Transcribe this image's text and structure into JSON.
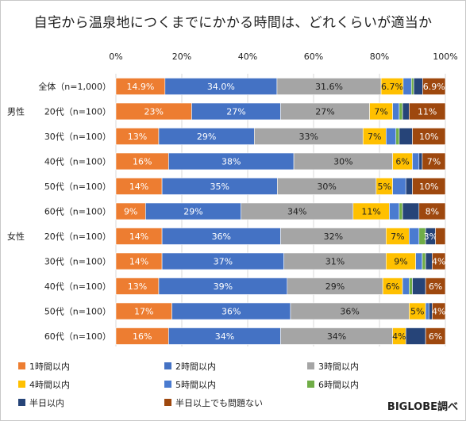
{
  "title": "自宅から温泉地につくまでにかかる時間は、どれくらいが適当か",
  "credit": "BIGLOBE調べ",
  "chart_data": {
    "type": "bar",
    "orientation": "horizontal",
    "stacked": "percent",
    "xlim": [
      0,
      100
    ],
    "xticks": [
      "0%",
      "20%",
      "40%",
      "60%",
      "80%",
      "100%"
    ],
    "grid": true,
    "legend_position": "bottom",
    "group_labels": [
      {
        "label": "男性",
        "row": 1
      },
      {
        "label": "女性",
        "row": 6
      }
    ],
    "categories": [
      "全体（n=1,000）",
      "20代（n=100）",
      "30代（n=100）",
      "40代（n=100）",
      "50代（n=100）",
      "60代（n=100）",
      "20代（n=100）",
      "30代（n=100）",
      "40代（n=100）",
      "50代（n=100）",
      "60代（n=100）"
    ],
    "series": [
      {
        "name": "1時間以内",
        "color": "#ed7d31",
        "values": [
          14.9,
          23,
          13,
          16,
          14,
          9,
          14,
          14,
          13,
          17,
          16
        ],
        "labels": [
          "14.9%",
          "23%",
          "13%",
          "16%",
          "14%",
          "9%",
          "14%",
          "14%",
          "13%",
          "17%",
          "16%"
        ]
      },
      {
        "name": "2時間以内",
        "color": "#4472c4",
        "values": [
          34.0,
          27,
          29,
          38,
          35,
          29,
          36,
          37,
          39,
          36,
          34
        ],
        "labels": [
          "34.0%",
          "27%",
          "29%",
          "38%",
          "35%",
          "29%",
          "36%",
          "37%",
          "39%",
          "36%",
          "34%"
        ]
      },
      {
        "name": "3時間以内",
        "color": "#a5a5a5",
        "values": [
          31.6,
          27,
          33,
          30,
          30,
          34,
          32,
          31,
          29,
          36,
          34
        ],
        "labels": [
          "31.6%",
          "27%",
          "33%",
          "30%",
          "30%",
          "34%",
          "32%",
          "31%",
          "29%",
          "36%",
          "34%"
        ]
      },
      {
        "name": "4時間以内",
        "color": "#ffc000",
        "values": [
          6.7,
          7,
          7,
          6,
          5,
          11,
          7,
          9,
          6,
          5,
          4
        ],
        "labels": [
          "6.7%",
          "7%",
          "7%",
          "6%",
          "5%",
          "11%",
          "7%",
          "9%",
          "6%",
          "5%",
          "4%"
        ]
      },
      {
        "name": "5時間以内",
        "color": "#4a7bd0",
        "values": [
          2.5,
          2,
          3,
          2,
          4,
          3,
          3,
          2,
          2,
          1,
          0
        ],
        "labels": [
          "",
          "",
          "",
          "",
          "",
          "",
          "",
          "",
          "",
          "",
          ""
        ]
      },
      {
        "name": "6時間以内",
        "color": "#70ad47",
        "values": [
          0.7,
          1,
          1,
          0,
          0,
          1,
          2,
          1,
          1,
          0,
          0
        ],
        "labels": [
          "",
          "",
          "",
          "",
          "",
          "",
          "",
          "",
          "",
          "",
          ""
        ]
      },
      {
        "name": "半日以内",
        "color": "#264478",
        "values": [
          2.7,
          2,
          4,
          1,
          2,
          5,
          3,
          2,
          4,
          1,
          6
        ],
        "labels": [
          "",
          "",
          "",
          "",
          "",
          "",
          "3%",
          "",
          "",
          "",
          ""
        ]
      },
      {
        "name": "半日以上でも問題ない",
        "color": "#9e480e",
        "values": [
          6.9,
          11,
          10,
          7,
          10,
          8,
          3,
          4,
          6,
          4,
          6
        ],
        "labels": [
          "6.9%",
          "11%",
          "10%",
          "7%",
          "10%",
          "8%",
          "",
          "4%",
          "6%",
          "4%",
          "6%"
        ]
      }
    ]
  }
}
